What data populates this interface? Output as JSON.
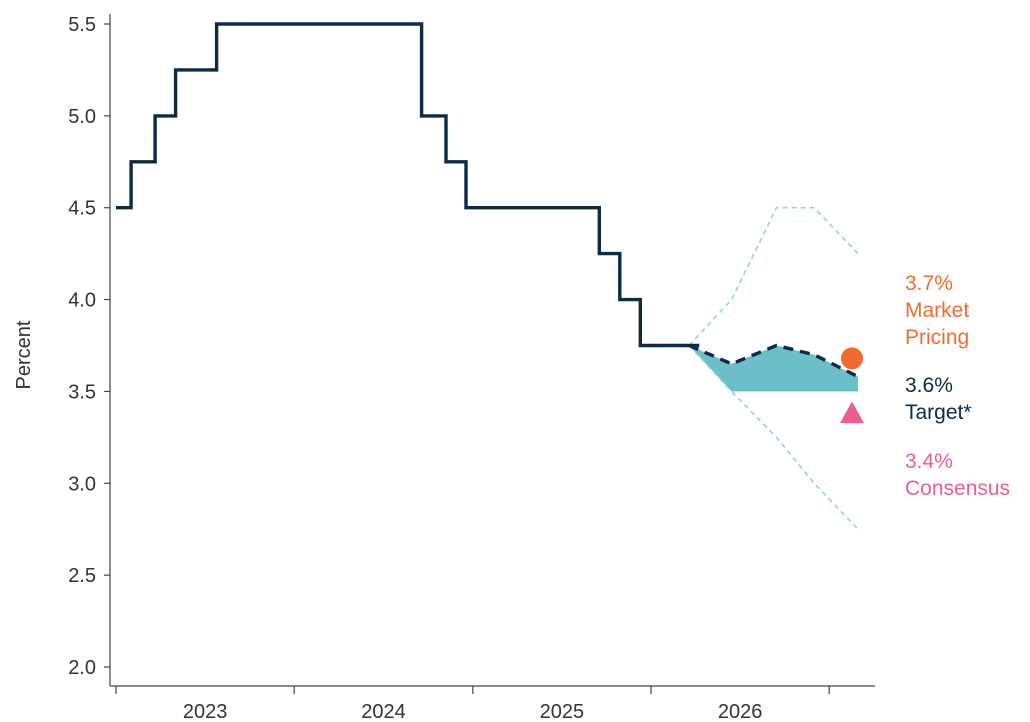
{
  "chart_data": {
    "type": "line",
    "title": "",
    "xlabel": "",
    "ylabel": "Percent",
    "ylim": [
      2.0,
      5.5
    ],
    "yticks": [
      2.0,
      2.5,
      3.0,
      3.5,
      4.0,
      4.5,
      5.0,
      5.5
    ],
    "ytick_labels": [
      "2.0",
      "2.5",
      "3.0",
      "3.5",
      "4.0",
      "4.5",
      "5.0",
      "5.5"
    ],
    "xlim": [
      "2023-01-01",
      "2027-05-01"
    ],
    "xtick_labels": [
      "2023",
      "2024",
      "2025",
      "2026"
    ],
    "grid": false,
    "series": [
      {
        "role": "policy_rate",
        "style": "step",
        "color": "#0d2b45",
        "points": [
          [
            "2023-01-01",
            4.5
          ],
          [
            "2023-02-01",
            4.75
          ],
          [
            "2023-03-22",
            5.0
          ],
          [
            "2023-05-03",
            5.25
          ],
          [
            "2023-07-26",
            5.5
          ],
          [
            "2024-09-18",
            5.0
          ],
          [
            "2024-11-07",
            4.75
          ],
          [
            "2024-12-18",
            4.5
          ],
          [
            "2025-09-17",
            4.25
          ],
          [
            "2025-10-29",
            4.0
          ],
          [
            "2025-12-10",
            3.75
          ],
          [
            "2026-04-10",
            3.75
          ]
        ]
      },
      {
        "role": "target",
        "style": "dashed",
        "color": "#0d2b45",
        "points": [
          [
            "2026-03-20",
            3.75
          ],
          [
            "2026-06-15",
            3.65
          ],
          [
            "2026-09-15",
            3.75
          ],
          [
            "2026-12-01",
            3.7
          ],
          [
            "2027-03-01",
            3.58
          ]
        ]
      },
      {
        "role": "range_upper",
        "style": "dotted",
        "color": "#8fd3dd",
        "points": [
          [
            "2026-03-20",
            3.75
          ],
          [
            "2026-06-15",
            4.0
          ],
          [
            "2026-09-15",
            4.5
          ],
          [
            "2026-12-01",
            4.5
          ],
          [
            "2027-03-01",
            4.25
          ]
        ]
      },
      {
        "role": "range_lower",
        "style": "dotted",
        "color": "#8fd3dd",
        "points": [
          [
            "2026-03-20",
            3.75
          ],
          [
            "2026-06-15",
            3.5
          ],
          [
            "2026-09-15",
            3.25
          ],
          [
            "2026-12-01",
            3.0
          ],
          [
            "2027-03-01",
            2.75
          ]
        ]
      }
    ],
    "band": {
      "color": "#6bbfc9",
      "upper": [
        [
          "2026-03-20",
          3.75
        ],
        [
          "2026-06-15",
          3.65
        ],
        [
          "2026-09-15",
          3.75
        ],
        [
          "2026-12-01",
          3.7
        ],
        [
          "2027-03-01",
          3.58
        ]
      ],
      "lower": [
        [
          "2026-03-20",
          3.75
        ],
        [
          "2026-06-15",
          3.5
        ],
        [
          "2026-09-15",
          3.5
        ],
        [
          "2026-12-01",
          3.5
        ],
        [
          "2027-03-01",
          3.5
        ]
      ]
    },
    "markers": [
      {
        "shape": "circle",
        "color": "#f26a2e",
        "x": "2027-03-01",
        "y": 3.68
      },
      {
        "shape": "triangle",
        "color": "#ee5d8f",
        "x": "2027-03-01",
        "y": 3.38
      }
    ],
    "annotations": [
      {
        "lines": [
          "3.7%",
          "Market",
          "Pricing"
        ],
        "color": "#f26a2e"
      },
      {
        "lines": [
          "3.6%",
          "Target*"
        ],
        "color": "#0d2b45"
      },
      {
        "lines": [
          "3.4%",
          "Consensus"
        ],
        "color": "#ee5d8f"
      }
    ]
  }
}
